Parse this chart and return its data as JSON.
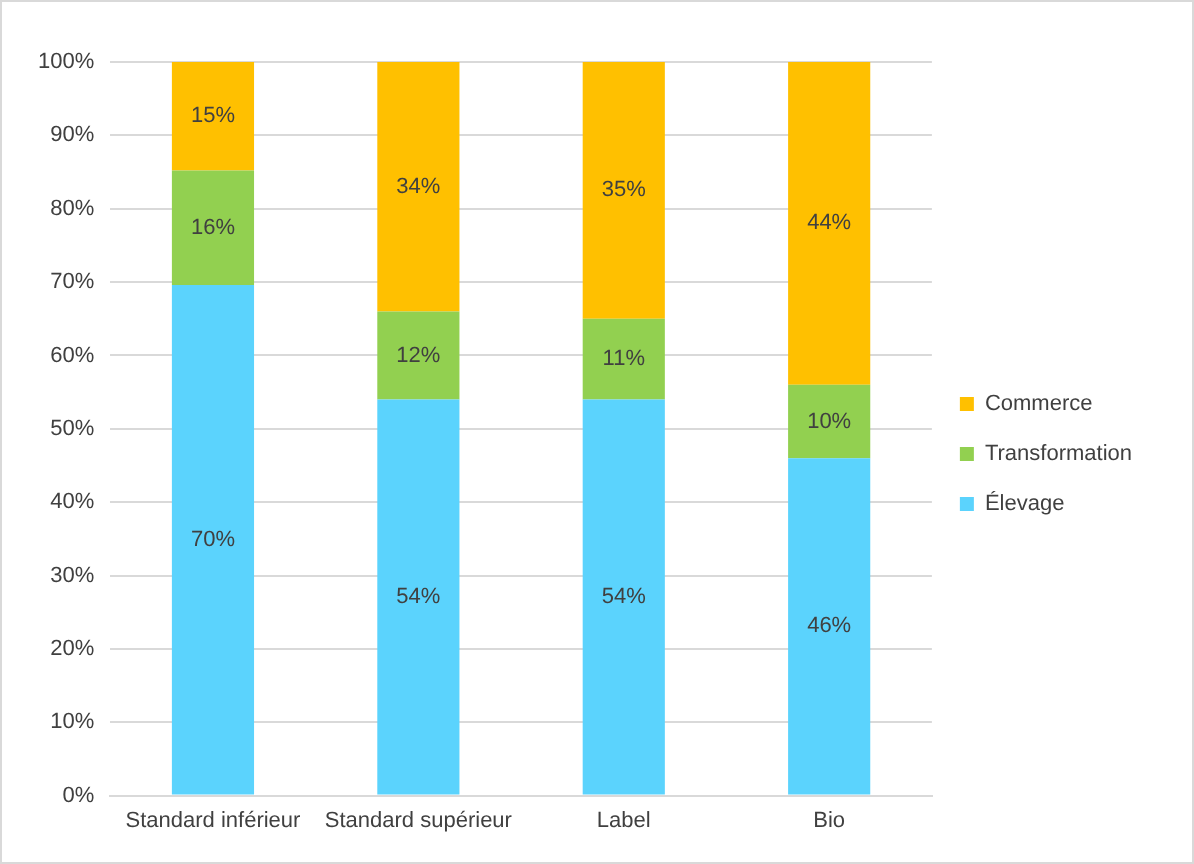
{
  "chart_data": {
    "type": "bar",
    "stacked": true,
    "categories": [
      "Standard inférieur",
      "Standard supérieur",
      "Label",
      "Bio"
    ],
    "series": [
      {
        "name": "Élevage",
        "color": "#5bd3fd",
        "values": [
          69.6,
          54,
          54,
          46
        ],
        "value_labels": [
          "70%",
          "54%",
          "54%",
          "46%"
        ]
      },
      {
        "name": "Transformation",
        "color": "#92d050",
        "values": [
          15.6,
          12,
          11,
          10
        ],
        "value_labels": [
          "16%",
          "12%",
          "11%",
          "10%"
        ]
      },
      {
        "name": "Commerce",
        "color": "#ffc000",
        "values": [
          14.8,
          34,
          35,
          44
        ],
        "value_labels": [
          "15%",
          "34%",
          "35%",
          "44%"
        ]
      }
    ],
    "ylim": [
      0,
      100
    ],
    "yticks": [
      {
        "value": 0,
        "label": "0%"
      },
      {
        "value": 10,
        "label": "10%"
      },
      {
        "value": 20,
        "label": "20%"
      },
      {
        "value": 30,
        "label": "30%"
      },
      {
        "value": 40,
        "label": "40%"
      },
      {
        "value": 50,
        "label": "50%"
      },
      {
        "value": 60,
        "label": "60%"
      },
      {
        "value": 70,
        "label": "70%"
      },
      {
        "value": 80,
        "label": "80%"
      },
      {
        "value": 90,
        "label": "90%"
      },
      {
        "value": 100,
        "label": "100%"
      }
    ],
    "grid": "y",
    "legend": "right"
  }
}
